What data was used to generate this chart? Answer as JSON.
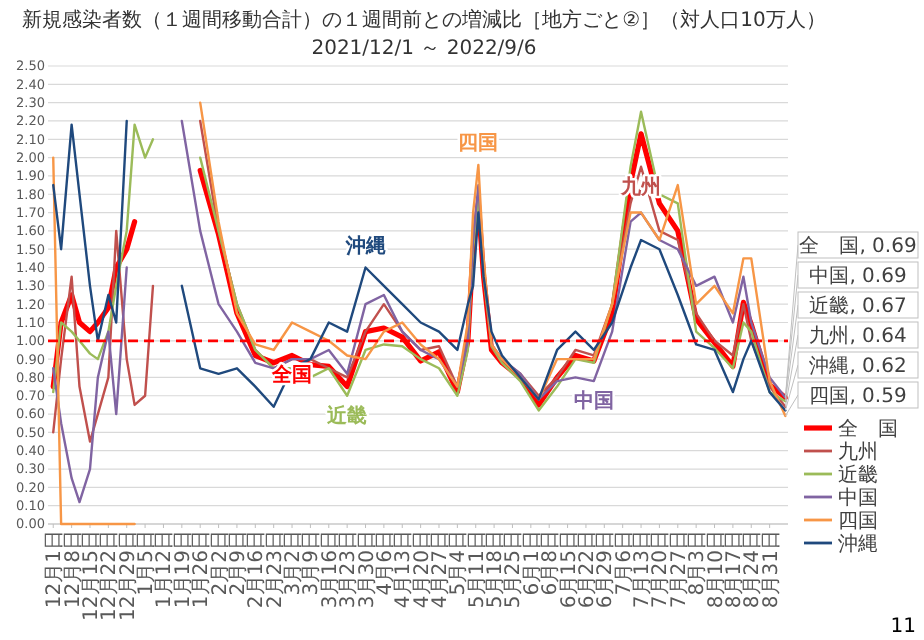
{
  "chart_data": {
    "type": "line",
    "title": "新規感染者数（１週間移動合計）の１週間前との増減比［地方ごと②］（対人口10万人）",
    "subtitle": "2021/12/1 ～ 2022/9/6",
    "x": [
      "2021-12-01",
      "2021-12-04",
      "2021-12-08",
      "2021-12-11",
      "2021-12-15",
      "2021-12-18",
      "2021-12-22",
      "2021-12-25",
      "2021-12-29",
      "2022-01-01",
      "2022-01-05",
      "2022-01-08",
      "2022-01-12",
      "2022-01-19",
      "2022-01-26",
      "2022-02-02",
      "2022-02-09",
      "2022-02-16",
      "2022-02-23",
      "2022-03-02",
      "2022-03-09",
      "2022-03-16",
      "2022-03-23",
      "2022-03-30",
      "2022-04-06",
      "2022-04-13",
      "2022-04-20",
      "2022-04-27",
      "2022-05-04",
      "2022-05-08",
      "2022-05-10",
      "2022-05-12",
      "2022-05-14",
      "2022-05-17",
      "2022-05-21",
      "2022-05-28",
      "2022-06-04",
      "2022-06-11",
      "2022-06-18",
      "2022-06-25",
      "2022-07-02",
      "2022-07-09",
      "2022-07-13",
      "2022-07-20",
      "2022-07-27",
      "2022-08-03",
      "2022-08-10",
      "2022-08-17",
      "2022-08-21",
      "2022-08-24",
      "2022-08-31",
      "2022-09-06"
    ],
    "xlim": [
      "2021-11-29",
      "2022-09-07"
    ],
    "xticks": [
      {
        "value": "2021-12-01",
        "label": "12月1日"
      },
      {
        "value": "2021-12-08",
        "label": "12月8日"
      },
      {
        "value": "2021-12-15",
        "label": "12月15日"
      },
      {
        "value": "2021-12-22",
        "label": "12月22日"
      },
      {
        "value": "2021-12-29",
        "label": "12月29日"
      },
      {
        "value": "2022-01-05",
        "label": "1月5日"
      },
      {
        "value": "2022-01-12",
        "label": "1月12日"
      },
      {
        "value": "2022-01-19",
        "label": "1月19日"
      },
      {
        "value": "2022-01-26",
        "label": "1月26日"
      },
      {
        "value": "2022-02-02",
        "label": "2月2日"
      },
      {
        "value": "2022-02-09",
        "label": "2月9日"
      },
      {
        "value": "2022-02-16",
        "label": "2月16日"
      },
      {
        "value": "2022-02-23",
        "label": "2月23日"
      },
      {
        "value": "2022-03-02",
        "label": "3月2日"
      },
      {
        "value": "2022-03-09",
        "label": "3月9日"
      },
      {
        "value": "2022-03-16",
        "label": "3月16日"
      },
      {
        "value": "2022-03-23",
        "label": "3月23日"
      },
      {
        "value": "2022-03-30",
        "label": "3月30日"
      },
      {
        "value": "2022-04-06",
        "label": "4月6日"
      },
      {
        "value": "2022-04-13",
        "label": "4月13日"
      },
      {
        "value": "2022-04-20",
        "label": "4月20日"
      },
      {
        "value": "2022-04-27",
        "label": "4月27日"
      },
      {
        "value": "2022-05-04",
        "label": "5月4日"
      },
      {
        "value": "2022-05-11",
        "label": "5月11日"
      },
      {
        "value": "2022-05-18",
        "label": "5月18日"
      },
      {
        "value": "2022-05-25",
        "label": "5月25日"
      },
      {
        "value": "2022-06-01",
        "label": "6月1日"
      },
      {
        "value": "2022-06-08",
        "label": "6月8日"
      },
      {
        "value": "2022-06-15",
        "label": "6月15日"
      },
      {
        "value": "2022-06-22",
        "label": "6月22日"
      },
      {
        "value": "2022-06-29",
        "label": "6月29日"
      },
      {
        "value": "2022-07-06",
        "label": "7月6日"
      },
      {
        "value": "2022-07-13",
        "label": "7月13日"
      },
      {
        "value": "2022-07-20",
        "label": "7月20日"
      },
      {
        "value": "2022-07-27",
        "label": "7月27日"
      },
      {
        "value": "2022-08-03",
        "label": "8月3日"
      },
      {
        "value": "2022-08-10",
        "label": "8月10日"
      },
      {
        "value": "2022-08-17",
        "label": "8月17日"
      },
      {
        "value": "2022-08-24",
        "label": "8月24日"
      },
      {
        "value": "2022-08-31",
        "label": "8月31日"
      }
    ],
    "ylim": [
      0,
      2.5
    ],
    "yticks": [
      {
        "value": 0,
        "label": "0.00"
      },
      {
        "value": 0.1,
        "label": "0.10"
      },
      {
        "value": 0.2,
        "label": "0.20"
      },
      {
        "value": 0.3,
        "label": "0.30"
      },
      {
        "value": 0.4,
        "label": "0.40"
      },
      {
        "value": 0.5,
        "label": "0.50"
      },
      {
        "value": 0.6,
        "label": "0.60"
      },
      {
        "value": 0.7,
        "label": "0.70"
      },
      {
        "value": 0.8,
        "label": "0.80"
      },
      {
        "value": 0.9,
        "label": "0.90"
      },
      {
        "value": 1,
        "label": "1.00"
      },
      {
        "value": 1.1,
        "label": "1.10"
      },
      {
        "value": 1.2,
        "label": "1.20"
      },
      {
        "value": 1.3,
        "label": "1.30"
      },
      {
        "value": 1.4,
        "label": "1.40"
      },
      {
        "value": 1.5,
        "label": "1.50"
      },
      {
        "value": 1.6,
        "label": "1.60"
      },
      {
        "value": 1.7,
        "label": "1.70"
      },
      {
        "value": 1.8,
        "label": "1.80"
      },
      {
        "value": 1.9,
        "label": "1.90"
      },
      {
        "value": 2,
        "label": "2.00"
      },
      {
        "value": 2.1,
        "label": "2.10"
      },
      {
        "value": 2.2,
        "label": "2.20"
      },
      {
        "value": 2.3,
        "label": "2.30"
      },
      {
        "value": 2.4,
        "label": "2.40"
      },
      {
        "value": 2.5,
        "label": "2.50"
      }
    ],
    "grid": "y",
    "legend": "right",
    "ref_lines": [
      {
        "axis": "y",
        "value": 1,
        "color": "#ff0000",
        "line_style": "dashed"
      }
    ],
    "series": [
      {
        "name": "全　国",
        "color": "#ff0000",
        "values": [
          0.75,
          1.1,
          1.25,
          1.1,
          1.05,
          1.1,
          1.18,
          1.4,
          1.5,
          1.65,
          null,
          null,
          null,
          null,
          1.93,
          1.58,
          1.15,
          0.92,
          0.88,
          0.92,
          0.87,
          0.86,
          0.75,
          1.05,
          1.07,
          1.02,
          0.89,
          0.94,
          0.72,
          1.0,
          1.5,
          1.75,
          1.35,
          0.95,
          0.88,
          0.8,
          0.65,
          0.8,
          0.92,
          0.89,
          1.15,
          1.86,
          2.13,
          1.75,
          1.6,
          1.12,
          0.99,
          0.86,
          1.21,
          1.09,
          0.76,
          0.69
        ]
      },
      {
        "name": "九州",
        "color": "#c0504d",
        "values": [
          0.5,
          0.9,
          1.35,
          0.75,
          0.45,
          0.6,
          0.8,
          1.6,
          0.9,
          0.65,
          0.7,
          1.3,
          null,
          null,
          2.2,
          1.6,
          1.2,
          0.95,
          0.85,
          0.9,
          0.9,
          0.85,
          0.8,
          1.05,
          1.2,
          1.05,
          0.95,
          0.97,
          0.75,
          1.05,
          1.55,
          1.75,
          1.4,
          0.98,
          0.9,
          0.82,
          0.7,
          0.8,
          0.95,
          0.92,
          1.2,
          1.75,
          1.95,
          1.6,
          1.55,
          1.15,
          1.0,
          0.92,
          1.2,
          1.0,
          0.75,
          0.64
        ]
      },
      {
        "name": "近畿",
        "color": "#9bbb59",
        "values": [
          0.72,
          1.1,
          1.05,
          1.0,
          0.93,
          0.9,
          1.05,
          1.3,
          1.6,
          2.18,
          2.0,
          2.1,
          null,
          null,
          2.0,
          1.6,
          1.2,
          0.95,
          0.85,
          0.85,
          0.8,
          0.85,
          0.7,
          0.95,
          0.98,
          0.97,
          0.9,
          0.85,
          0.7,
          0.95,
          1.5,
          1.8,
          1.35,
          0.97,
          0.88,
          0.78,
          0.62,
          0.75,
          0.9,
          0.88,
          1.2,
          1.95,
          2.25,
          1.8,
          1.75,
          1.05,
          0.96,
          0.85,
          1.1,
          1.05,
          0.72,
          0.67
        ]
      },
      {
        "name": "中国",
        "color": "#8064a2",
        "values": [
          0.85,
          0.55,
          0.25,
          0.12,
          0.3,
          0.8,
          1.05,
          0.6,
          1.4,
          null,
          null,
          null,
          null,
          2.2,
          1.6,
          1.2,
          1.05,
          0.88,
          0.85,
          0.9,
          0.9,
          0.95,
          0.82,
          1.2,
          1.25,
          1.05,
          0.95,
          0.9,
          0.75,
          1.0,
          1.55,
          1.85,
          1.4,
          0.98,
          0.9,
          0.82,
          0.68,
          0.78,
          0.8,
          0.78,
          1.05,
          1.65,
          1.7,
          1.55,
          1.5,
          1.3,
          1.35,
          1.1,
          1.35,
          1.1,
          0.8,
          0.69
        ]
      },
      {
        "name": "四国",
        "color": "#f79646",
        "values": [
          2.0,
          0.0,
          0.0,
          0.0,
          0.0,
          0.0,
          0.0,
          0.0,
          0.0,
          0.0,
          null,
          null,
          null,
          null,
          2.3,
          1.65,
          1.15,
          0.98,
          0.95,
          1.1,
          1.05,
          1.0,
          0.92,
          0.9,
          1.05,
          1.1,
          0.98,
          0.9,
          0.75,
          1.1,
          1.7,
          1.96,
          1.45,
          0.98,
          0.9,
          0.8,
          0.68,
          0.9,
          0.9,
          0.9,
          1.2,
          1.7,
          1.7,
          1.55,
          1.85,
          1.2,
          1.3,
          1.15,
          1.45,
          1.45,
          0.78,
          0.59
        ]
      },
      {
        "name": "沖縄",
        "color": "#1f497d",
        "values": [
          1.85,
          1.5,
          2.18,
          1.8,
          1.3,
          1.0,
          1.25,
          1.1,
          2.2,
          null,
          null,
          null,
          null,
          1.3,
          0.85,
          0.82,
          0.85,
          0.75,
          0.64,
          0.85,
          0.9,
          1.1,
          1.05,
          1.4,
          1.3,
          1.2,
          1.1,
          1.05,
          0.95,
          1.2,
          1.3,
          1.7,
          1.35,
          1.05,
          0.92,
          0.8,
          0.68,
          0.95,
          1.05,
          0.95,
          1.1,
          1.4,
          1.55,
          1.5,
          1.25,
          0.98,
          0.95,
          0.72,
          0.9,
          1.0,
          0.72,
          0.62
        ]
      }
    ],
    "annotations": [
      {
        "text": "全国",
        "x": "2022-03-02",
        "y": 0.92
      },
      {
        "text": "近畿",
        "x": "2022-03-23",
        "y": 0.7
      },
      {
        "text": "沖縄",
        "x": "2022-03-30",
        "y": 1.4
      },
      {
        "text": "四国",
        "x": "2022-05-12",
        "y": 1.96
      },
      {
        "text": "中国",
        "x": "2022-06-25",
        "y": 0.78
      },
      {
        "text": "九州",
        "x": "2022-07-13",
        "y": 1.95
      },
      {
        "text": "全　国, 0.69",
        "x": "2022-09-06",
        "y": 0.69
      },
      {
        "text": "中国, 0.69",
        "x": "2022-09-06",
        "y": 0.69
      },
      {
        "text": "近畿, 0.67",
        "x": "2022-09-06",
        "y": 0.67
      },
      {
        "text": "九州, 0.64",
        "x": "2022-09-06",
        "y": 0.64
      },
      {
        "text": "沖縄, 0.62",
        "x": "2022-09-06",
        "y": 0.62
      },
      {
        "text": "四国, 0.59",
        "x": "2022-09-06",
        "y": 0.59
      },
      "11"
    ]
  }
}
